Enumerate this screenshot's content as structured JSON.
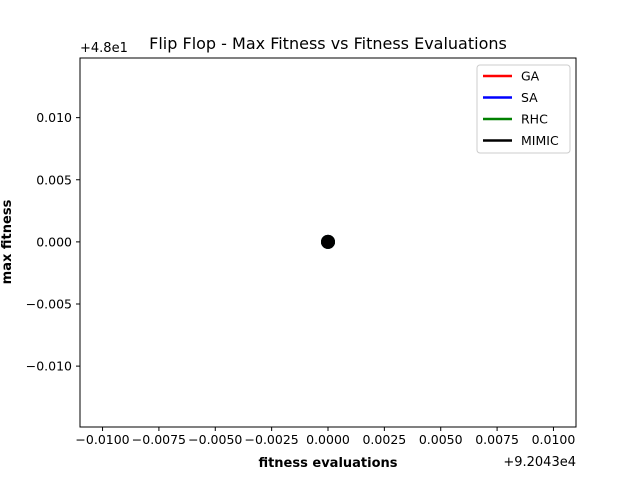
{
  "chart_data": {
    "type": "line",
    "title": "Flip Flop - Max Fitness vs Fitness Evaluations",
    "xlabel": "fitness evaluations",
    "ylabel": "max fitness",
    "x_offset_label": "+9.2043e4",
    "y_offset_label": "+4.8e1",
    "xlim": [
      -0.011,
      0.011
    ],
    "ylim": [
      -0.0149,
      0.0148
    ],
    "x_ticks": [
      -0.01,
      -0.0075,
      -0.005,
      -0.0025,
      0.0,
      0.0025,
      0.005,
      0.0075,
      0.01
    ],
    "x_tick_labels": [
      "−0.0100",
      "−0.0075",
      "−0.0050",
      "−0.0025",
      "0.0000",
      "0.0025",
      "0.0050",
      "0.0075",
      "0.0100"
    ],
    "y_ticks": [
      0.01,
      0.005,
      0.0,
      -0.005,
      -0.01
    ],
    "y_tick_labels": [
      "0.010",
      "0.005",
      "0.000",
      "−0.005",
      "−0.010"
    ],
    "grid": false,
    "legend_position": "top-right",
    "series": [
      {
        "name": "GA",
        "color": "#ff0000",
        "x": [
          0.0
        ],
        "y": [
          0.0
        ]
      },
      {
        "name": "SA",
        "color": "#0000ff",
        "x": [
          0.0
        ],
        "y": [
          0.0
        ]
      },
      {
        "name": "RHC",
        "color": "#008000",
        "x": [
          0.0
        ],
        "y": [
          0.0
        ]
      },
      {
        "name": "MIMIC",
        "color": "#000000",
        "x": [
          0.0
        ],
        "y": [
          0.0
        ]
      }
    ]
  }
}
